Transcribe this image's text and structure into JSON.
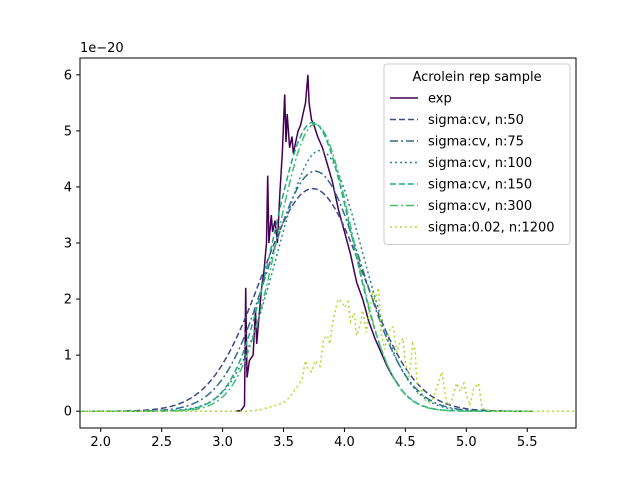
{
  "chart_data": {
    "type": "line",
    "title": "",
    "xlabel": "",
    "ylabel": "",
    "xlim": [
      1.83,
      5.9
    ],
    "ylim": [
      -0.3,
      6.3
    ],
    "y_offset_label": "1e−20",
    "x_ticks": [
      2.0,
      2.5,
      3.0,
      3.5,
      4.0,
      4.5,
      5.0,
      5.5
    ],
    "x_tick_labels": [
      "2.0",
      "2.5",
      "3.0",
      "3.5",
      "4.0",
      "4.5",
      "5.0",
      "5.5"
    ],
    "y_ticks": [
      0,
      1,
      2,
      3,
      4,
      5,
      6
    ],
    "y_tick_labels": [
      "0",
      "1",
      "2",
      "3",
      "4",
      "5",
      "6"
    ],
    "grid": false,
    "legend": {
      "title": "Acrolein rep sample",
      "placement": "top-right"
    },
    "series": [
      {
        "name": "exp",
        "color": "#440154",
        "style": "solid",
        "points": [
          [
            3.1,
            0.0
          ],
          [
            3.15,
            0.01
          ],
          [
            3.18,
            0.1
          ],
          [
            3.19,
            2.2
          ],
          [
            3.2,
            0.6
          ],
          [
            3.22,
            0.9
          ],
          [
            3.25,
            1.0
          ],
          [
            3.27,
            1.8
          ],
          [
            3.28,
            1.2
          ],
          [
            3.3,
            1.7
          ],
          [
            3.32,
            2.2
          ],
          [
            3.34,
            2.5
          ],
          [
            3.36,
            3.0
          ],
          [
            3.37,
            4.2
          ],
          [
            3.38,
            3.0
          ],
          [
            3.4,
            3.5
          ],
          [
            3.41,
            3.2
          ],
          [
            3.43,
            3.4
          ],
          [
            3.45,
            3.0
          ],
          [
            3.47,
            3.9
          ],
          [
            3.49,
            4.6
          ],
          [
            3.51,
            5.65
          ],
          [
            3.52,
            4.8
          ],
          [
            3.53,
            5.3
          ],
          [
            3.55,
            4.7
          ],
          [
            3.57,
            4.9
          ],
          [
            3.58,
            4.6
          ],
          [
            3.6,
            4.8
          ],
          [
            3.62,
            5.0
          ],
          [
            3.64,
            5.1
          ],
          [
            3.66,
            5.3
          ],
          [
            3.68,
            5.5
          ],
          [
            3.7,
            6.0
          ],
          [
            3.71,
            5.5
          ],
          [
            3.73,
            5.2
          ],
          [
            3.75,
            5.1
          ],
          [
            3.78,
            4.9
          ],
          [
            3.82,
            4.7
          ],
          [
            3.86,
            4.4
          ],
          [
            3.9,
            4.1
          ],
          [
            3.95,
            3.6
          ],
          [
            4.0,
            3.2
          ],
          [
            4.05,
            2.8
          ],
          [
            4.1,
            2.3
          ],
          [
            4.15,
            2.0
          ],
          [
            4.2,
            1.6
          ],
          [
            4.25,
            1.3
          ],
          [
            4.3,
            1.05
          ],
          [
            4.35,
            0.8
          ],
          [
            4.4,
            0.6
          ],
          [
            4.45,
            0.45
          ]
        ]
      },
      {
        "name": "sigma:cv, n:50",
        "color": "#3e4989",
        "style": "dashed",
        "peak": 3.97,
        "mu": 3.74,
        "sigma": 0.42
      },
      {
        "name": "sigma:cv, n:75",
        "color": "#2f6b8e",
        "style": "dashdot",
        "peak": 4.28,
        "mu": 3.76,
        "sigma": 0.38
      },
      {
        "name": "sigma:cv, n:100",
        "color": "#23888e",
        "style": "dotted",
        "peak": 4.65,
        "mu": 3.8,
        "sigma": 0.35
      },
      {
        "name": "sigma:cv, n:150",
        "color": "#22a884",
        "style": "dashed",
        "peak": 5.15,
        "mu": 3.74,
        "sigma": 0.32
      },
      {
        "name": "sigma:cv, n:300",
        "color": "#44bf70",
        "style": "dashdot",
        "peak": 5.12,
        "mu": 3.76,
        "sigma": 0.31
      },
      {
        "name": "sigma:0.02, n:1200",
        "color": "#addc30",
        "style": "dotted",
        "points": [
          [
            1.83,
            0.0
          ],
          [
            3.2,
            0.0
          ],
          [
            3.3,
            0.02
          ],
          [
            3.4,
            0.08
          ],
          [
            3.5,
            0.15
          ],
          [
            3.55,
            0.25
          ],
          [
            3.6,
            0.4
          ],
          [
            3.65,
            0.55
          ],
          [
            3.68,
            0.9
          ],
          [
            3.7,
            0.75
          ],
          [
            3.73,
            0.7
          ],
          [
            3.76,
            0.9
          ],
          [
            3.8,
            0.8
          ],
          [
            3.83,
            1.3
          ],
          [
            3.86,
            1.35
          ],
          [
            3.88,
            1.2
          ],
          [
            3.9,
            1.55
          ],
          [
            3.93,
            1.85
          ],
          [
            3.95,
            2.0
          ],
          [
            3.98,
            1.95
          ],
          [
            4.0,
            1.85
          ],
          [
            4.03,
            1.95
          ],
          [
            4.05,
            1.6
          ],
          [
            4.08,
            1.75
          ],
          [
            4.1,
            1.35
          ],
          [
            4.13,
            1.55
          ],
          [
            4.15,
            1.8
          ],
          [
            4.18,
            1.4
          ],
          [
            4.2,
            1.7
          ],
          [
            4.23,
            2.1
          ],
          [
            4.25,
            2.0
          ],
          [
            4.28,
            2.2
          ],
          [
            4.3,
            1.4
          ],
          [
            4.33,
            1.1
          ],
          [
            4.35,
            1.3
          ],
          [
            4.38,
            1.5
          ],
          [
            4.4,
            1.5
          ],
          [
            4.43,
            1.05
          ],
          [
            4.45,
            1.2
          ],
          [
            4.48,
            1.3
          ],
          [
            4.5,
            0.85
          ],
          [
            4.53,
            0.6
          ],
          [
            4.56,
            1.2
          ],
          [
            4.58,
            1.1
          ],
          [
            4.6,
            0.3
          ],
          [
            4.63,
            0.4
          ],
          [
            4.66,
            0.2
          ],
          [
            4.7,
            0.15
          ],
          [
            4.73,
            0.25
          ],
          [
            4.77,
            0.5
          ],
          [
            4.8,
            0.7
          ],
          [
            4.83,
            0.25
          ],
          [
            4.85,
            0.1
          ],
          [
            4.88,
            0.2
          ],
          [
            4.92,
            0.5
          ],
          [
            4.95,
            0.35
          ],
          [
            4.98,
            0.5
          ],
          [
            5.0,
            0.3
          ],
          [
            5.03,
            0.1
          ],
          [
            5.06,
            0.4
          ],
          [
            5.1,
            0.5
          ],
          [
            5.13,
            0.05
          ],
          [
            5.2,
            0.0
          ],
          [
            5.9,
            0.0
          ]
        ]
      }
    ]
  }
}
